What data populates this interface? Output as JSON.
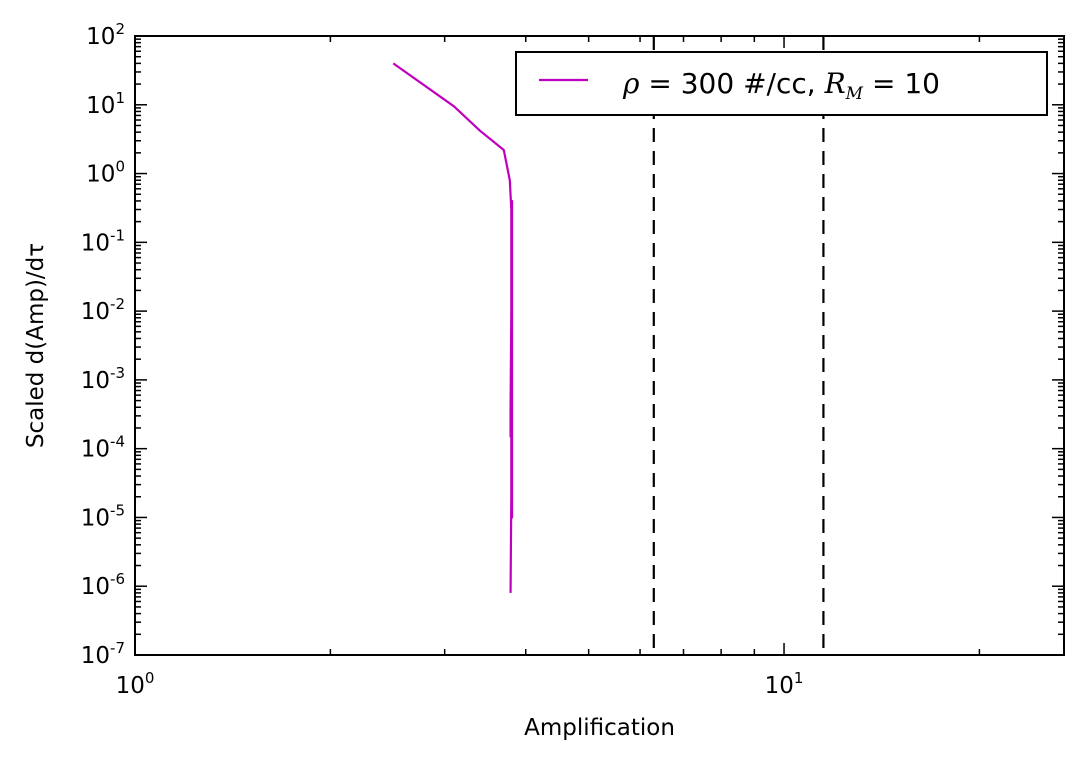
{
  "chart_data": {
    "type": "line",
    "xscale": "log",
    "yscale": "log",
    "xlim": [
      1,
      27
    ],
    "ylim": [
      1e-07,
      100
    ],
    "xlabel": "Amplification",
    "ylabel": "Scaled d(Amp)/dτ",
    "x_ticks": [
      {
        "value": 1,
        "base": "10",
        "exp": "0"
      },
      {
        "value": 10,
        "base": "10",
        "exp": "1"
      }
    ],
    "y_ticks": [
      {
        "value": 1e-07,
        "base": "10",
        "exp": "-7"
      },
      {
        "value": 1e-06,
        "base": "10",
        "exp": "-6"
      },
      {
        "value": 1e-05,
        "base": "10",
        "exp": "-5"
      },
      {
        "value": 0.0001,
        "base": "10",
        "exp": "-4"
      },
      {
        "value": 0.001,
        "base": "10",
        "exp": "-3"
      },
      {
        "value": 0.01,
        "base": "10",
        "exp": "-2"
      },
      {
        "value": 0.1,
        "base": "10",
        "exp": "-1"
      },
      {
        "value": 1,
        "base": "10",
        "exp": "0"
      },
      {
        "value": 10,
        "base": "10",
        "exp": "1"
      },
      {
        "value": 100,
        "base": "10",
        "exp": "2"
      }
    ],
    "series": [
      {
        "name_parts": {
          "rho_symbol": "ρ",
          "rho_text": " =  300 #/cc, ",
          "rm_symbol": "R",
          "rm_sub": "M",
          "rm_text": " =   10"
        },
        "color": "#bf00bf",
        "points": [
          [
            2.5,
            40
          ],
          [
            3.1,
            9.5
          ],
          [
            3.4,
            4.2
          ],
          [
            3.7,
            2.2
          ],
          [
            3.78,
            0.8
          ],
          [
            3.8,
            0.3
          ],
          [
            3.8,
            0.01
          ],
          [
            3.79,
            0.0004
          ],
          [
            3.79,
            0.00015
          ],
          [
            3.8,
            0.0003
          ],
          [
            3.8,
            1e-05
          ],
          [
            3.81,
            0.4
          ],
          [
            3.81,
            1e-05
          ],
          [
            3.8,
            2e-05
          ],
          [
            3.79,
            8e-07
          ]
        ]
      }
    ],
    "vlines": [
      {
        "x": 6.3,
        "style": "dashed",
        "color": "#000000"
      },
      {
        "x": 11.5,
        "style": "dashed",
        "color": "#000000"
      }
    ],
    "legend": {
      "position": "top-right"
    },
    "grid": false
  }
}
